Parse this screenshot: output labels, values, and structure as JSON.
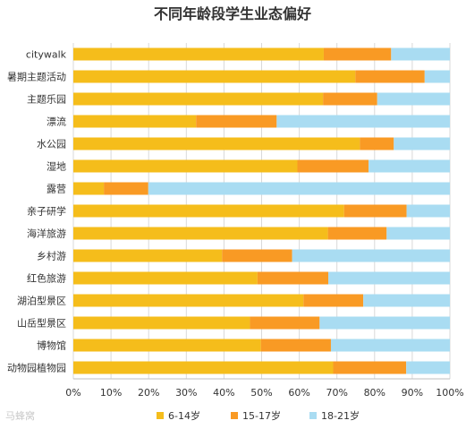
{
  "watermark": "马蜂窝",
  "chart_data": {
    "type": "bar",
    "orientation": "horizontal",
    "stacked": true,
    "percent": true,
    "title": "不同年龄段学生业态偏好",
    "categories": [
      "citywalk",
      "暑期主题活动",
      "主题乐园",
      "漂流",
      "水公园",
      "湿地",
      "露营",
      "亲子研学",
      "海洋旅游",
      "乡村游",
      "红色旅游",
      "湖泊型景区",
      "山岳型景区",
      "博物馆",
      "动物园植物园"
    ],
    "series": [
      {
        "name": "6-14岁",
        "color": "#f5bd1b",
        "values": [
          66.5,
          74.9,
          66.3,
          32.6,
          76.1,
          59.5,
          8.1,
          71.9,
          67.6,
          39.5,
          48.9,
          61.1,
          46.9,
          49.8,
          69.0
        ]
      },
      {
        "name": "15-17岁",
        "color": "#f99a24",
        "values": [
          17.9,
          18.4,
          14.4,
          21.4,
          9.0,
          18.9,
          11.8,
          16.6,
          15.6,
          18.6,
          18.8,
          15.9,
          18.5,
          18.6,
          19.4
        ]
      },
      {
        "name": "18-21岁",
        "color": "#a9dcf2",
        "values": [
          15.6,
          6.7,
          19.3,
          46.0,
          14.9,
          21.6,
          80.1,
          11.5,
          16.8,
          41.9,
          32.3,
          23.0,
          34.6,
          31.6,
          11.6
        ]
      }
    ],
    "xlim": [
      0,
      100
    ],
    "xticks": [
      "0%",
      "10%",
      "20%",
      "30%",
      "40%",
      "50%",
      "60%",
      "70%",
      "80%",
      "90%",
      "100%"
    ],
    "grid": true,
    "legend": "bottom"
  }
}
